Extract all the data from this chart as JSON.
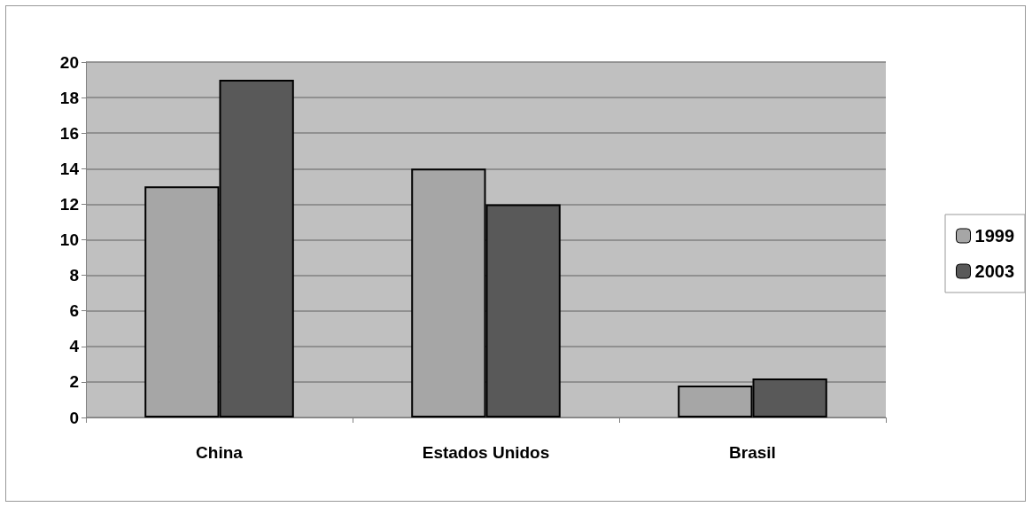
{
  "chart_data": {
    "type": "bar",
    "categories": [
      "China",
      "Estados Unidos",
      "Brasil"
    ],
    "series": [
      {
        "name": "1999",
        "color": "#a6a6a6",
        "values": [
          13,
          14,
          1.8
        ]
      },
      {
        "name": "2003",
        "color": "#595959",
        "values": [
          19,
          12,
          2.2
        ]
      }
    ],
    "ylim": [
      0,
      20
    ],
    "yticks": [
      0,
      2,
      4,
      6,
      8,
      10,
      12,
      14,
      16,
      18,
      20
    ],
    "grid": "y",
    "legend": "right"
  }
}
